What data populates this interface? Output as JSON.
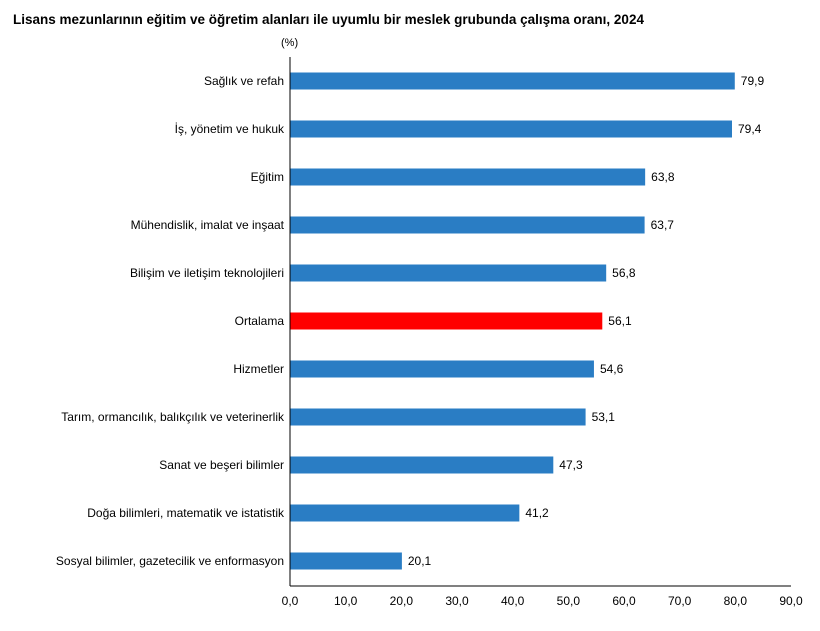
{
  "chart_data": {
    "type": "bar",
    "orientation": "horizontal",
    "title": "Lisans mezunlarının eğitim ve öğretim alanları ile uyumlu bir meslek grubunda çalışma oranı, 2024",
    "unit_label": "(%)",
    "categories": [
      "Sağlık ve refah",
      "İş, yönetim ve hukuk",
      "Eğitim",
      "Mühendislik, imalat ve inşaat",
      "Bilişim ve iletişim teknolojileri",
      "Ortalama",
      "Hizmetler",
      "Tarım, ormancılık, balıkçılık ve veterinerlik",
      "Sanat ve beşeri bilimler",
      "Doğa bilimleri, matematik ve istatistik",
      "Sosyal bilimler, gazetecilik ve enformasyon"
    ],
    "values": [
      79.9,
      79.4,
      63.8,
      63.7,
      56.8,
      56.1,
      54.6,
      53.1,
      47.3,
      41.2,
      20.1
    ],
    "value_labels": [
      "79,9",
      "79,4",
      "63,8",
      "63,7",
      "56,8",
      "56,1",
      "54,6",
      "53,1",
      "47,3",
      "41,2",
      "20,1"
    ],
    "xlim": [
      0,
      90
    ],
    "xticks": [
      0,
      10,
      20,
      30,
      40,
      50,
      60,
      70,
      80,
      90
    ],
    "xtick_labels": [
      "0,0",
      "10,0",
      "20,0",
      "30,0",
      "40,0",
      "50,0",
      "60,0",
      "70,0",
      "80,0",
      "90,0"
    ],
    "grid": false,
    "colors": {
      "default": "#2a7dc4",
      "highlight": "#ff0000"
    },
    "highlight_category": "Ortalama"
  }
}
